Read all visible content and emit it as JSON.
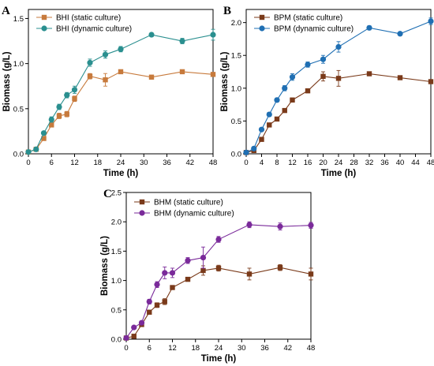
{
  "chart_data": [
    {
      "panel_label": "A",
      "type": "line",
      "xlabel": "Time (h)",
      "ylabel": "Biomass (g/L)",
      "xlim": [
        0,
        48
      ],
      "ylim": [
        0,
        1.6
      ],
      "xticks": [
        0,
        6,
        12,
        18,
        24,
        30,
        36,
        42,
        48
      ],
      "yticks": [
        0.0,
        0.5,
        1.0,
        1.5
      ],
      "legend_position": "top-left",
      "grid": false,
      "series": [
        {
          "name": "BHI (static culture)",
          "marker": "square",
          "color": "#c77a3c",
          "x": [
            0,
            2,
            4,
            6,
            8,
            10,
            12,
            16,
            20,
            24,
            32,
            40,
            48
          ],
          "y": [
            0.02,
            0.05,
            0.17,
            0.32,
            0.42,
            0.44,
            0.61,
            0.86,
            0.82,
            0.91,
            0.85,
            0.91,
            0.88
          ],
          "err": [
            0.01,
            0.01,
            0.02,
            0.02,
            0.03,
            0.03,
            0.03,
            0.03,
            0.07,
            0.02,
            0.02,
            0.02,
            0.02
          ]
        },
        {
          "name": "BHI (dynamic culture)",
          "marker": "circle",
          "color": "#2a8f8f",
          "x": [
            0,
            2,
            4,
            6,
            8,
            10,
            12,
            16,
            20,
            24,
            32,
            40,
            48
          ],
          "y": [
            0.02,
            0.05,
            0.23,
            0.38,
            0.52,
            0.65,
            0.71,
            1.01,
            1.1,
            1.16,
            1.32,
            1.25,
            1.32
          ],
          "err": [
            0.01,
            0.01,
            0.02,
            0.03,
            0.03,
            0.03,
            0.04,
            0.04,
            0.04,
            0.03,
            0.02,
            0.03,
            0.06
          ]
        }
      ]
    },
    {
      "panel_label": "B",
      "type": "line",
      "xlabel": "Time (h)",
      "ylabel": "Biomass (g/L)",
      "xlim": [
        0,
        48
      ],
      "ylim": [
        0,
        2.2
      ],
      "xticks": [
        0,
        4,
        8,
        12,
        16,
        20,
        24,
        28,
        32,
        36,
        40,
        44,
        48
      ],
      "yticks": [
        0.0,
        0.5,
        1.0,
        1.5,
        2.0
      ],
      "legend_position": "top-left",
      "grid": false,
      "series": [
        {
          "name": "BPM (static culture)",
          "marker": "square",
          "color": "#7a3a1a",
          "x": [
            0,
            2,
            4,
            6,
            8,
            10,
            12,
            16,
            20,
            24,
            32,
            40,
            48
          ],
          "y": [
            0.02,
            0.05,
            0.22,
            0.44,
            0.53,
            0.66,
            0.82,
            0.96,
            1.18,
            1.15,
            1.22,
            1.16,
            1.1
          ],
          "err": [
            0.01,
            0.01,
            0.02,
            0.02,
            0.02,
            0.03,
            0.03,
            0.03,
            0.07,
            0.12,
            0.02,
            0.02,
            0.02
          ]
        },
        {
          "name": "BPM (dynamic culture)",
          "marker": "circle",
          "color": "#1f6fb3",
          "x": [
            0,
            2,
            4,
            6,
            8,
            10,
            12,
            16,
            20,
            24,
            32,
            40,
            48
          ],
          "y": [
            0.02,
            0.08,
            0.37,
            0.6,
            0.82,
            1.0,
            1.17,
            1.36,
            1.44,
            1.63,
            1.92,
            1.83,
            2.02
          ],
          "err": [
            0.01,
            0.01,
            0.02,
            0.03,
            0.03,
            0.04,
            0.05,
            0.04,
            0.06,
            0.08,
            0.03,
            0.02,
            0.05
          ]
        }
      ]
    },
    {
      "panel_label": "C",
      "type": "line",
      "xlabel": "Time (h)",
      "ylabel": "Biomass (g/L)",
      "xlim": [
        0,
        48
      ],
      "ylim": [
        0,
        2.5
      ],
      "xticks": [
        0,
        6,
        12,
        18,
        24,
        30,
        36,
        42,
        48
      ],
      "yticks": [
        0.0,
        0.5,
        1.0,
        1.5,
        2.0,
        2.5
      ],
      "legend_position": "top-left",
      "grid": false,
      "series": [
        {
          "name": "BHM (static culture)",
          "marker": "square",
          "color": "#7a3a1a",
          "x": [
            0,
            2,
            4,
            6,
            8,
            10,
            12,
            16,
            20,
            24,
            32,
            40,
            48
          ],
          "y": [
            0.02,
            0.05,
            0.25,
            0.46,
            0.58,
            0.64,
            0.88,
            1.02,
            1.17,
            1.21,
            1.11,
            1.22,
            1.11
          ],
          "err": [
            0.01,
            0.01,
            0.02,
            0.03,
            0.04,
            0.05,
            0.03,
            0.03,
            0.08,
            0.05,
            0.1,
            0.05,
            0.1
          ]
        },
        {
          "name": "BHM (dynamic culture)",
          "marker": "circle",
          "color": "#7a2a9a",
          "x": [
            0,
            2,
            4,
            6,
            8,
            10,
            12,
            16,
            20,
            24,
            32,
            40,
            48
          ],
          "y": [
            0.02,
            0.2,
            0.28,
            0.64,
            0.93,
            1.13,
            1.13,
            1.34,
            1.39,
            1.7,
            1.95,
            1.92,
            1.94
          ],
          "err": [
            0.01,
            0.02,
            0.03,
            0.04,
            0.05,
            0.1,
            0.08,
            0.05,
            0.18,
            0.05,
            0.05,
            0.06,
            0.05
          ]
        }
      ]
    }
  ]
}
